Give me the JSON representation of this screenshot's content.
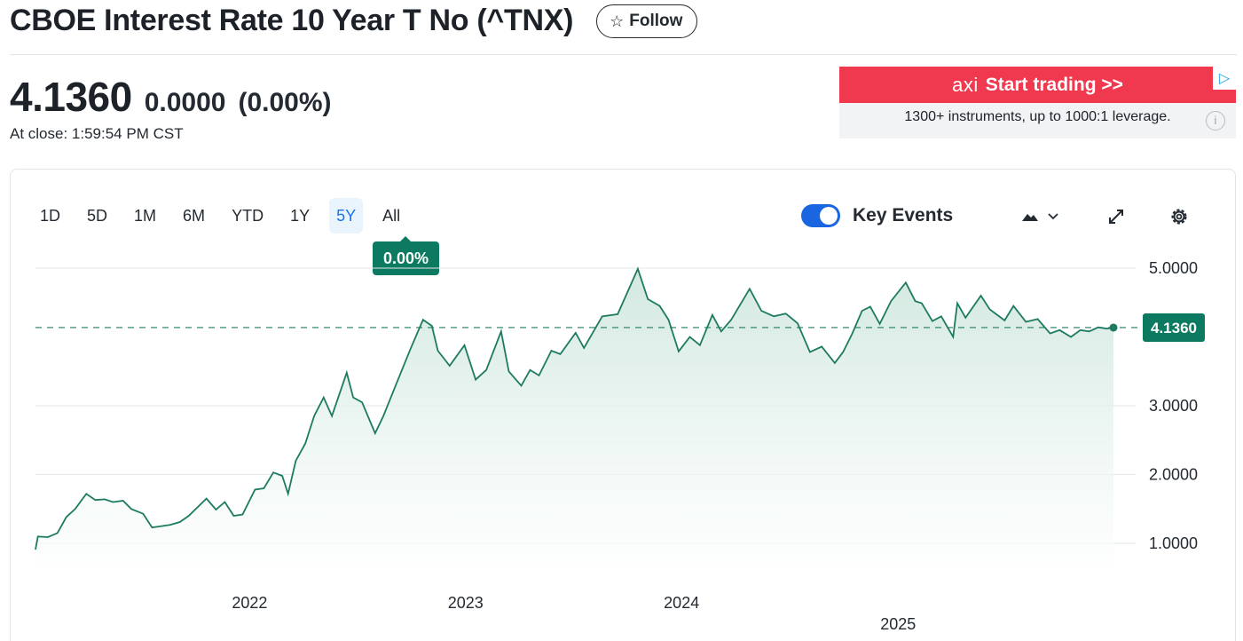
{
  "header": {
    "title": "CBOE Interest Rate 10 Year T No (^TNX)",
    "follow_label": "Follow"
  },
  "quote": {
    "price": "4.1360",
    "change": "0.0000",
    "change_pct": "(0.00%)",
    "close_time": "At close: 1:59:54 PM CST"
  },
  "ad": {
    "logo": "axi",
    "cta": "Start trading >>",
    "subtitle": "1300+ instruments, up to 1000:1 leverage.",
    "corner_glyph": "▷",
    "info_glyph": "i"
  },
  "range_tabs": [
    "1D",
    "5D",
    "1M",
    "6M",
    "YTD",
    "1Y",
    "5Y",
    "All"
  ],
  "active_range": "5Y",
  "range_change_tip": "0.00%",
  "key_events": {
    "label": "Key Events",
    "enabled": true
  },
  "colors": {
    "line": "#1e7b61",
    "fill": "#d9ede6",
    "badge": "#0b7a60",
    "active_tab": "#1a73e8",
    "toggle": "#1a66e0"
  },
  "icons": [
    "star-icon",
    "mountain-chart-icon",
    "chevron-down-icon",
    "expand-icon",
    "gear-icon"
  ],
  "chart_data": {
    "type": "area",
    "title": "",
    "ylim": [
      0.5,
      5.3
    ],
    "yticks": [
      1.0,
      2.0,
      3.0,
      5.0
    ],
    "ytick_labels": [
      "1.0000",
      "2.0000",
      "3.0000",
      "5.0000"
    ],
    "xticks": [
      {
        "date": "2022-01-01",
        "label": "2022"
      },
      {
        "date": "2023-01-01",
        "label": "2023"
      },
      {
        "date": "2024-01-01",
        "label": "2024"
      },
      {
        "date": "2025-01-01",
        "label": "2025"
      }
    ],
    "grid": true,
    "reference_line": {
      "value": 4.136,
      "style": "dashed"
    },
    "last_value_label": "4.1360",
    "series": [
      {
        "points": [
          [
            "2021-01-04",
            0.91
          ],
          [
            "2021-01-08",
            1.1
          ],
          [
            "2021-01-25",
            1.09
          ],
          [
            "2021-02-10",
            1.15
          ],
          [
            "2021-02-25",
            1.38
          ],
          [
            "2021-03-12",
            1.5
          ],
          [
            "2021-03-31",
            1.72
          ],
          [
            "2021-04-15",
            1.63
          ],
          [
            "2021-05-01",
            1.64
          ],
          [
            "2021-05-15",
            1.6
          ],
          [
            "2021-06-01",
            1.62
          ],
          [
            "2021-06-15",
            1.5
          ],
          [
            "2021-07-05",
            1.43
          ],
          [
            "2021-07-20",
            1.23
          ],
          [
            "2021-08-05",
            1.25
          ],
          [
            "2021-08-20",
            1.27
          ],
          [
            "2021-09-05",
            1.31
          ],
          [
            "2021-09-20",
            1.4
          ],
          [
            "2021-10-20",
            1.65
          ],
          [
            "2021-11-05",
            1.49
          ],
          [
            "2021-11-20",
            1.6
          ],
          [
            "2021-12-05",
            1.4
          ],
          [
            "2021-12-20",
            1.42
          ],
          [
            "2022-01-10",
            1.78
          ],
          [
            "2022-01-25",
            1.8
          ],
          [
            "2022-02-10",
            2.03
          ],
          [
            "2022-02-25",
            1.98
          ],
          [
            "2022-03-07",
            1.72
          ],
          [
            "2022-03-20",
            2.2
          ],
          [
            "2022-04-05",
            2.45
          ],
          [
            "2022-04-20",
            2.85
          ],
          [
            "2022-05-06",
            3.12
          ],
          [
            "2022-05-20",
            2.85
          ],
          [
            "2022-06-14",
            3.48
          ],
          [
            "2022-06-25",
            3.12
          ],
          [
            "2022-07-10",
            3.05
          ],
          [
            "2022-08-01",
            2.6
          ],
          [
            "2022-08-15",
            2.85
          ],
          [
            "2022-09-05",
            3.3
          ],
          [
            "2022-09-30",
            3.83
          ],
          [
            "2022-10-21",
            4.25
          ],
          [
            "2022-11-05",
            4.16
          ],
          [
            "2022-11-15",
            3.8
          ],
          [
            "2022-12-05",
            3.58
          ],
          [
            "2022-12-30",
            3.88
          ],
          [
            "2023-01-18",
            3.38
          ],
          [
            "2023-02-05",
            3.52
          ],
          [
            "2023-03-02",
            4.08
          ],
          [
            "2023-03-15",
            3.5
          ],
          [
            "2023-04-05",
            3.29
          ],
          [
            "2023-04-20",
            3.52
          ],
          [
            "2023-05-05",
            3.44
          ],
          [
            "2023-05-26",
            3.8
          ],
          [
            "2023-06-10",
            3.75
          ],
          [
            "2023-07-06",
            4.06
          ],
          [
            "2023-07-20",
            3.84
          ],
          [
            "2023-08-20",
            4.3
          ],
          [
            "2023-09-15",
            4.33
          ],
          [
            "2023-10-19",
            4.99
          ],
          [
            "2023-11-05",
            4.55
          ],
          [
            "2023-11-25",
            4.45
          ],
          [
            "2023-12-10",
            4.25
          ],
          [
            "2023-12-27",
            3.79
          ],
          [
            "2024-01-15",
            4.0
          ],
          [
            "2024-02-01",
            3.88
          ],
          [
            "2024-02-22",
            4.32
          ],
          [
            "2024-03-08",
            4.08
          ],
          [
            "2024-03-25",
            4.25
          ],
          [
            "2024-04-25",
            4.7
          ],
          [
            "2024-05-15",
            4.38
          ],
          [
            "2024-06-05",
            4.3
          ],
          [
            "2024-06-25",
            4.34
          ],
          [
            "2024-07-15",
            4.2
          ],
          [
            "2024-08-05",
            3.78
          ],
          [
            "2024-08-25",
            3.86
          ],
          [
            "2024-09-16",
            3.62
          ],
          [
            "2024-09-30",
            3.78
          ],
          [
            "2024-10-15",
            4.04
          ],
          [
            "2024-11-01",
            4.38
          ],
          [
            "2024-11-15",
            4.44
          ],
          [
            "2024-12-01",
            4.19
          ],
          [
            "2024-12-20",
            4.52
          ],
          [
            "2025-01-14",
            4.79
          ],
          [
            "2025-01-30",
            4.52
          ],
          [
            "2025-02-10",
            4.49
          ],
          [
            "2025-02-28",
            4.23
          ],
          [
            "2025-03-15",
            4.3
          ],
          [
            "2025-04-04",
            4.0
          ],
          [
            "2025-04-11",
            4.49
          ],
          [
            "2025-04-25",
            4.28
          ],
          [
            "2025-05-21",
            4.6
          ],
          [
            "2025-06-05",
            4.4
          ],
          [
            "2025-06-30",
            4.24
          ],
          [
            "2025-07-15",
            4.45
          ],
          [
            "2025-08-05",
            4.22
          ],
          [
            "2025-08-25",
            4.26
          ],
          [
            "2025-09-15",
            4.05
          ],
          [
            "2025-10-01",
            4.1
          ],
          [
            "2025-10-20",
            4.0
          ],
          [
            "2025-11-05",
            4.1
          ],
          [
            "2025-11-20",
            4.08
          ],
          [
            "2025-12-05",
            4.14
          ],
          [
            "2025-12-20",
            4.12
          ],
          [
            "2025-12-31",
            4.136
          ]
        ]
      }
    ]
  }
}
